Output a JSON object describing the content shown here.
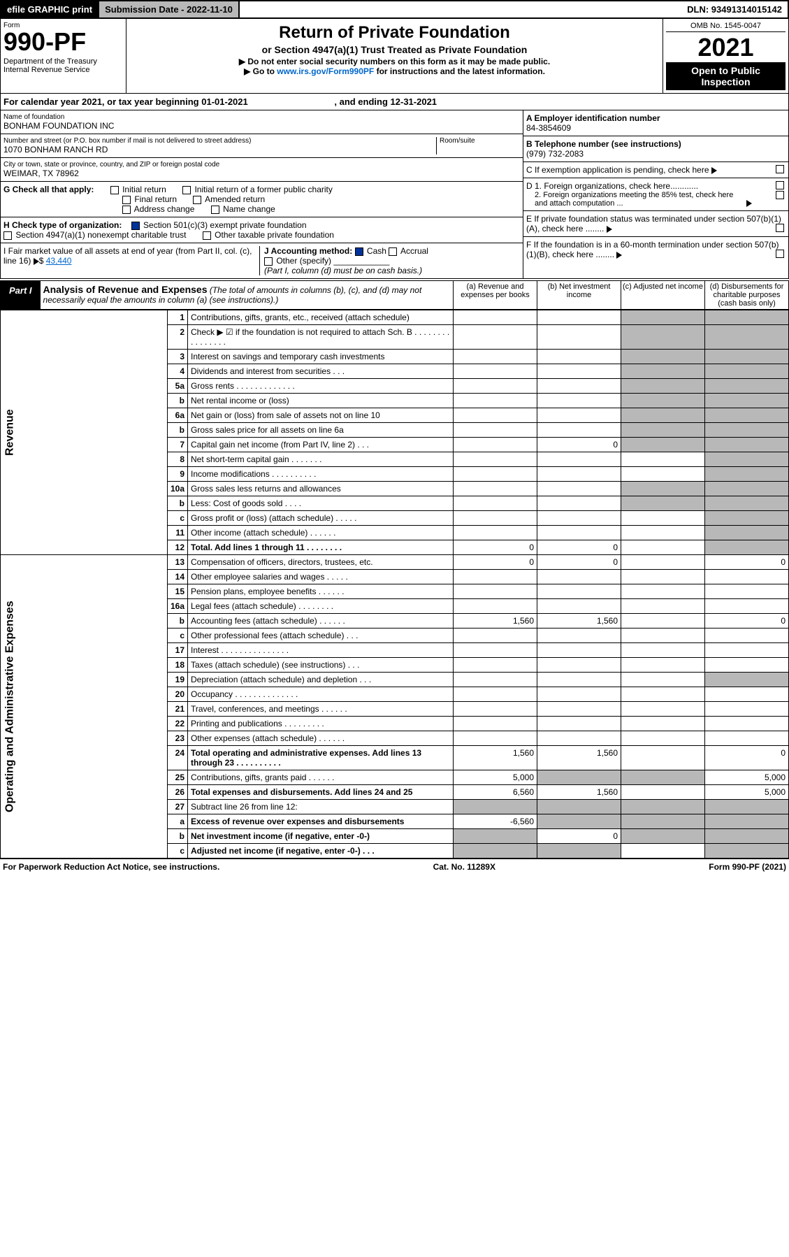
{
  "topbar": {
    "efile": "efile GRAPHIC print",
    "subdate_lbl": "Submission Date - 2022-11-10",
    "dln": "DLN: 93491314015142"
  },
  "hdr": {
    "form": "Form",
    "num": "990-PF",
    "dept": "Department of the Treasury\nInternal Revenue Service",
    "title": "Return of Private Foundation",
    "sub": "or Section 4947(a)(1) Trust Treated as Private Foundation",
    "note1": "▶ Do not enter social security numbers on this form as it may be made public.",
    "note2": "▶ Go to ",
    "link": "www.irs.gov/Form990PF",
    "note3": " for instructions and the latest information.",
    "omb": "OMB No. 1545-0047",
    "year": "2021",
    "open": "Open to Public Inspection"
  },
  "cal": {
    "pre": "For calendar year 2021, or tax year beginning ",
    "begin": "01-01-2021",
    "mid": ", and ending ",
    "end": "12-31-2021"
  },
  "meta": {
    "name_lbl": "Name of foundation",
    "name": "BONHAM FOUNDATION INC",
    "addr_lbl": "Number and street (or P.O. box number if mail is not delivered to street address)",
    "addr": "1070 BONHAM RANCH RD",
    "room_lbl": "Room/suite",
    "city_lbl": "City or town, state or province, country, and ZIP or foreign postal code",
    "city": "WEIMAR, TX  78962",
    "A_lbl": "A Employer identification number",
    "A": "84-3854609",
    "B_lbl": "B Telephone number (see instructions)",
    "B": "(979) 732-2083",
    "C": "C If exemption application is pending, check here",
    "D1": "D 1. Foreign organizations, check here............",
    "D2": "2. Foreign organizations meeting the 85% test, check here and attach computation ...",
    "E": "E  If private foundation status was terminated under section 507(b)(1)(A), check here ........",
    "F": "F  If the foundation is in a 60-month termination under section 507(b)(1)(B), check here ........"
  },
  "G": {
    "lbl": "G Check all that apply:",
    "opts": [
      "Initial return",
      "Initial return of a former public charity",
      "Final return",
      "Amended return",
      "Address change",
      "Name change"
    ]
  },
  "H": {
    "lbl": "H Check type of organization:",
    "o1": "Section 501(c)(3) exempt private foundation",
    "o2": "Section 4947(a)(1) nonexempt charitable trust",
    "o3": "Other taxable private foundation"
  },
  "I": {
    "lbl": "I Fair market value of all assets at end of year (from Part II, col. (c), line 16)",
    "val": "43,440"
  },
  "J": {
    "lbl": "J Accounting method:",
    "cash": "Cash",
    "accrual": "Accrual",
    "other": "Other (specify)",
    "note": "(Part I, column (d) must be on cash basis.)"
  },
  "part1": {
    "lbl": "Part I",
    "title": "Analysis of Revenue and Expenses",
    "desc": "(The total of amounts in columns (b), (c), and (d) may not necessarily equal the amounts in column (a) (see instructions).)",
    "cols": {
      "a": "(a)  Revenue and expenses per books",
      "b": "(b)  Net investment income",
      "c": "(c)  Adjusted net income",
      "d": "(d)  Disbursements for charitable purposes (cash basis only)"
    }
  },
  "sections": {
    "rev": "Revenue",
    "exp": "Operating and Administrative Expenses"
  },
  "rows": [
    {
      "s": "rev",
      "n": "1",
      "d": "Contributions, gifts, grants, etc., received (attach schedule)"
    },
    {
      "s": "rev",
      "n": "2",
      "d": "Check ▶ ☑ if the foundation is not required to attach Sch. B  .  .  .  .  .  .  .  .  .  .  .  .  .  .  .  .",
      "ck": true
    },
    {
      "s": "rev",
      "n": "3",
      "d": "Interest on savings and temporary cash investments"
    },
    {
      "s": "rev",
      "n": "4",
      "d": "Dividends and interest from securities  .  .  ."
    },
    {
      "s": "rev",
      "n": "5a",
      "d": "Gross rents  .  .  .  .  .  .  .  .  .  .  .  .  ."
    },
    {
      "s": "rev",
      "n": "b",
      "d": "Net rental income or (loss)"
    },
    {
      "s": "rev",
      "n": "6a",
      "d": "Net gain or (loss) from sale of assets not on line 10"
    },
    {
      "s": "rev",
      "n": "b",
      "d": "Gross sales price for all assets on line 6a"
    },
    {
      "s": "rev",
      "n": "7",
      "d": "Capital gain net income (from Part IV, line 2)  .  .  .",
      "b": "0"
    },
    {
      "s": "rev",
      "n": "8",
      "d": "Net short-term capital gain  .  .  .  .  .  .  ."
    },
    {
      "s": "rev",
      "n": "9",
      "d": "Income modifications  .  .  .  .  .  .  .  .  .  ."
    },
    {
      "s": "rev",
      "n": "10a",
      "d": "Gross sales less returns and allowances"
    },
    {
      "s": "rev",
      "n": "b",
      "d": "Less: Cost of goods sold  .  .  .  ."
    },
    {
      "s": "rev",
      "n": "c",
      "d": "Gross profit or (loss) (attach schedule)  .  .  .  .  ."
    },
    {
      "s": "rev",
      "n": "11",
      "d": "Other income (attach schedule)  .  .  .  .  .  ."
    },
    {
      "s": "rev",
      "n": "12",
      "d": "Total. Add lines 1 through 11  .  .  .  .  .  .  .  .",
      "a": "0",
      "b": "0",
      "bold": true
    },
    {
      "s": "exp",
      "n": "13",
      "d": "Compensation of officers, directors, trustees, etc.",
      "a": "0",
      "b": "0",
      "dv": "0"
    },
    {
      "s": "exp",
      "n": "14",
      "d": "Other employee salaries and wages  .  .  .  .  ."
    },
    {
      "s": "exp",
      "n": "15",
      "d": "Pension plans, employee benefits  .  .  .  .  .  ."
    },
    {
      "s": "exp",
      "n": "16a",
      "d": "Legal fees (attach schedule)  .  .  .  .  .  .  .  ."
    },
    {
      "s": "exp",
      "n": "b",
      "d": "Accounting fees (attach schedule)  .  .  .  .  .  .",
      "a": "1,560",
      "b": "1,560",
      "dv": "0"
    },
    {
      "s": "exp",
      "n": "c",
      "d": "Other professional fees (attach schedule)  .  .  ."
    },
    {
      "s": "exp",
      "n": "17",
      "d": "Interest  .  .  .  .  .  .  .  .  .  .  .  .  .  .  ."
    },
    {
      "s": "exp",
      "n": "18",
      "d": "Taxes (attach schedule) (see instructions)  .  .  ."
    },
    {
      "s": "exp",
      "n": "19",
      "d": "Depreciation (attach schedule) and depletion  .  .  ."
    },
    {
      "s": "exp",
      "n": "20",
      "d": "Occupancy  .  .  .  .  .  .  .  .  .  .  .  .  .  ."
    },
    {
      "s": "exp",
      "n": "21",
      "d": "Travel, conferences, and meetings  .  .  .  .  .  ."
    },
    {
      "s": "exp",
      "n": "22",
      "d": "Printing and publications  .  .  .  .  .  .  .  .  ."
    },
    {
      "s": "exp",
      "n": "23",
      "d": "Other expenses (attach schedule)  .  .  .  .  .  ."
    },
    {
      "s": "exp",
      "n": "24",
      "d": "Total operating and administrative expenses. Add lines 13 through 23  .  .  .  .  .  .  .  .  .  .",
      "a": "1,560",
      "b": "1,560",
      "dv": "0",
      "bold": true
    },
    {
      "s": "exp",
      "n": "25",
      "d": "Contributions, gifts, grants paid  .  .  .  .  .  .",
      "a": "5,000",
      "dv": "5,000"
    },
    {
      "s": "exp",
      "n": "26",
      "d": "Total expenses and disbursements. Add lines 24 and 25",
      "a": "6,560",
      "b": "1,560",
      "dv": "5,000",
      "bold": true
    },
    {
      "s": "exp",
      "n": "27",
      "d": "Subtract line 26 from line 12:"
    },
    {
      "s": "exp",
      "n": "a",
      "d": "Excess of revenue over expenses and disbursements",
      "a": "-6,560",
      "bold": true
    },
    {
      "s": "exp",
      "n": "b",
      "d": "Net investment income (if negative, enter -0-)",
      "b": "0",
      "bold": true
    },
    {
      "s": "exp",
      "n": "c",
      "d": "Adjusted net income (if negative, enter -0-)  .  .  .",
      "bold": true
    }
  ],
  "footer": {
    "l": "For Paperwork Reduction Act Notice, see instructions.",
    "c": "Cat. No. 11289X",
    "r": "Form 990-PF (2021)"
  }
}
